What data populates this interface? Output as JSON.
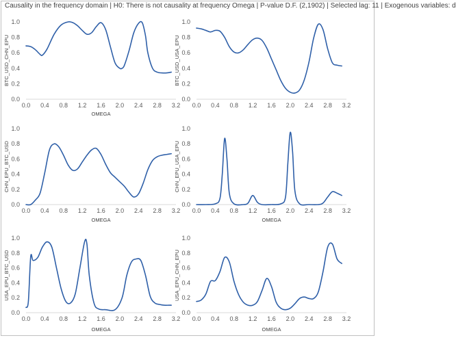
{
  "header": {
    "title": "Causality in the frequency domain | H0: There is not causality at frequency Omega | P-value D.F. (2,1902) | Selected lag: 11 | Exogenous variables: d"
  },
  "chart_data": [
    {
      "type": "line",
      "xlabel": "OMEGA",
      "ylabel": "BTC_USD_CHN_EPU",
      "xlim": [
        0.0,
        3.2
      ],
      "ylim": [
        0.0,
        1.0
      ],
      "xticks": [
        "0.0",
        "0.4",
        "0.8",
        "1.2",
        "1.6",
        "2.0",
        "2.4",
        "2.8",
        "3.2"
      ],
      "yticks": [
        "0.0",
        "0.2",
        "0.4",
        "0.6",
        "0.8",
        "1.0"
      ],
      "grid": false,
      "series": [
        {
          "color": "#2e5fa8",
          "x": [
            0.0,
            0.1,
            0.2,
            0.3,
            0.35,
            0.45,
            0.6,
            0.75,
            0.9,
            1.0,
            1.1,
            1.2,
            1.3,
            1.4,
            1.5,
            1.6,
            1.7,
            1.8,
            1.9,
            2.0,
            2.05,
            2.1,
            2.2,
            2.3,
            2.4,
            2.48,
            2.55,
            2.6,
            2.7,
            2.8,
            2.9,
            3.0,
            3.1
          ],
          "y": [
            0.69,
            0.68,
            0.64,
            0.58,
            0.57,
            0.65,
            0.84,
            0.96,
            1.0,
            0.99,
            0.95,
            0.89,
            0.84,
            0.86,
            0.94,
            0.99,
            0.9,
            0.68,
            0.47,
            0.4,
            0.4,
            0.44,
            0.63,
            0.86,
            0.98,
            0.99,
            0.82,
            0.6,
            0.4,
            0.35,
            0.34,
            0.34,
            0.35
          ]
        }
      ]
    },
    {
      "type": "line",
      "xlabel": "",
      "ylabel": "BTC_USD_USA_EPU",
      "xlim": [
        0.0,
        3.2
      ],
      "ylim": [
        0.0,
        1.0
      ],
      "xticks": [
        "0.0",
        "0.4",
        "0.8",
        "1.2",
        "1.6",
        "2.0",
        "2.4",
        "2.8",
        "3.2"
      ],
      "yticks": [
        "0.0",
        "0.2",
        "0.4",
        "0.6",
        "0.8",
        "1.0"
      ],
      "grid": false,
      "series": [
        {
          "color": "#2e5fa8",
          "x": [
            0.0,
            0.1,
            0.2,
            0.3,
            0.4,
            0.5,
            0.6,
            0.7,
            0.8,
            0.9,
            1.0,
            1.1,
            1.2,
            1.3,
            1.4,
            1.5,
            1.6,
            1.7,
            1.8,
            1.9,
            2.0,
            2.1,
            2.2,
            2.3,
            2.4,
            2.5,
            2.6,
            2.7,
            2.8,
            2.9,
            3.0,
            3.1
          ],
          "y": [
            0.92,
            0.91,
            0.89,
            0.87,
            0.89,
            0.88,
            0.8,
            0.68,
            0.61,
            0.6,
            0.64,
            0.71,
            0.77,
            0.79,
            0.76,
            0.66,
            0.52,
            0.38,
            0.24,
            0.14,
            0.09,
            0.08,
            0.12,
            0.25,
            0.48,
            0.79,
            0.97,
            0.9,
            0.65,
            0.47,
            0.44,
            0.43
          ]
        }
      ]
    },
    {
      "type": "line",
      "xlabel": "OMEGA",
      "ylabel": "CHN_EPU_BTC_USD",
      "xlim": [
        0.0,
        3.2
      ],
      "ylim": [
        0.0,
        1.0
      ],
      "xticks": [
        "0.0",
        "0.4",
        "0.8",
        "1.2",
        "1.6",
        "2.0",
        "2.4",
        "2.8",
        "3.2"
      ],
      "yticks": [
        "0.0",
        "0.2",
        "0.4",
        "0.6",
        "0.8",
        "1.0"
      ],
      "grid": false,
      "series": [
        {
          "color": "#2e5fa8",
          "x": [
            0.0,
            0.1,
            0.2,
            0.3,
            0.4,
            0.5,
            0.6,
            0.7,
            0.8,
            0.9,
            1.0,
            1.1,
            1.2,
            1.3,
            1.4,
            1.5,
            1.6,
            1.7,
            1.8,
            1.9,
            2.0,
            2.1,
            2.2,
            2.3,
            2.4,
            2.5,
            2.6,
            2.7,
            2.8,
            2.9,
            3.0,
            3.1
          ],
          "y": [
            0.0,
            0.0,
            0.06,
            0.15,
            0.42,
            0.72,
            0.8,
            0.76,
            0.65,
            0.52,
            0.45,
            0.47,
            0.56,
            0.65,
            0.72,
            0.74,
            0.66,
            0.53,
            0.42,
            0.36,
            0.3,
            0.24,
            0.16,
            0.1,
            0.14,
            0.28,
            0.46,
            0.58,
            0.63,
            0.65,
            0.66,
            0.67
          ]
        }
      ]
    },
    {
      "type": "line",
      "xlabel": "OMEGA",
      "ylabel": "CHN_EPU_USA_EPU",
      "xlim": [
        0.0,
        3.2
      ],
      "ylim": [
        0.0,
        1.0
      ],
      "xticks": [
        "0.0",
        "0.4",
        "0.8",
        "1.2",
        "1.6",
        "2.0",
        "2.4",
        "2.8",
        "3.2"
      ],
      "yticks": [
        "0.0",
        "0.2",
        "0.4",
        "0.6",
        "0.8",
        "1.0"
      ],
      "grid": false,
      "series": [
        {
          "color": "#2e5fa8",
          "x": [
            0.0,
            0.2,
            0.4,
            0.5,
            0.55,
            0.6,
            0.65,
            0.7,
            0.8,
            1.0,
            1.1,
            1.2,
            1.3,
            1.4,
            1.6,
            1.8,
            1.9,
            1.95,
            2.0,
            2.05,
            2.1,
            2.2,
            2.4,
            2.6,
            2.7,
            2.8,
            2.9,
            3.0,
            3.1
          ],
          "y": [
            0.0,
            0.0,
            0.01,
            0.08,
            0.4,
            0.87,
            0.6,
            0.15,
            0.01,
            0.0,
            0.02,
            0.12,
            0.03,
            0.0,
            0.0,
            0.01,
            0.1,
            0.55,
            0.95,
            0.7,
            0.18,
            0.01,
            0.0,
            0.0,
            0.02,
            0.1,
            0.17,
            0.15,
            0.12
          ]
        }
      ]
    },
    {
      "type": "line",
      "xlabel": "OMEGA",
      "ylabel": "USA_EPU_BTC_USD",
      "xlim": [
        0.0,
        3.2
      ],
      "ylim": [
        0.0,
        1.0
      ],
      "xticks": [
        "0.0",
        "0.4",
        "0.8",
        "1.2",
        "1.6",
        "2.0",
        "2.4",
        "2.8",
        "3.2"
      ],
      "yticks": [
        "0.0",
        "0.2",
        "0.4",
        "0.6",
        "0.8",
        "1.0"
      ],
      "grid": false,
      "series": [
        {
          "color": "#2e5fa8",
          "x": [
            0.0,
            0.05,
            0.1,
            0.15,
            0.25,
            0.35,
            0.45,
            0.55,
            0.65,
            0.75,
            0.85,
            0.95,
            1.05,
            1.15,
            1.25,
            1.3,
            1.35,
            1.45,
            1.55,
            1.7,
            1.9,
            2.05,
            2.15,
            2.25,
            2.35,
            2.45,
            2.55,
            2.65,
            2.75,
            2.85,
            2.95,
            3.05,
            3.1
          ],
          "y": [
            0.07,
            0.15,
            0.75,
            0.7,
            0.74,
            0.88,
            0.95,
            0.88,
            0.6,
            0.32,
            0.15,
            0.13,
            0.25,
            0.6,
            0.95,
            0.92,
            0.5,
            0.13,
            0.05,
            0.04,
            0.04,
            0.2,
            0.5,
            0.68,
            0.72,
            0.7,
            0.5,
            0.22,
            0.13,
            0.11,
            0.1,
            0.1,
            0.1
          ]
        }
      ]
    },
    {
      "type": "line",
      "xlabel": "OMEGA",
      "ylabel": "USA_EPU_CHN_EPU",
      "xlim": [
        0.0,
        3.2
      ],
      "ylim": [
        0.0,
        1.0
      ],
      "xticks": [
        "0.0",
        "0.4",
        "0.8",
        "1.2",
        "1.6",
        "2.0",
        "2.4",
        "2.8",
        "3.2"
      ],
      "yticks": [
        "0.0",
        "0.2",
        "0.4",
        "0.6",
        "0.8",
        "1.0"
      ],
      "grid": false,
      "series": [
        {
          "color": "#2e5fa8",
          "x": [
            0.0,
            0.1,
            0.2,
            0.3,
            0.4,
            0.5,
            0.6,
            0.7,
            0.8,
            0.9,
            1.0,
            1.1,
            1.2,
            1.3,
            1.4,
            1.5,
            1.6,
            1.7,
            1.8,
            1.9,
            2.0,
            2.1,
            2.2,
            2.3,
            2.4,
            2.5,
            2.6,
            2.7,
            2.8,
            2.9,
            3.0,
            3.1
          ],
          "y": [
            0.15,
            0.17,
            0.25,
            0.42,
            0.43,
            0.55,
            0.74,
            0.68,
            0.42,
            0.24,
            0.14,
            0.1,
            0.1,
            0.15,
            0.3,
            0.46,
            0.35,
            0.14,
            0.06,
            0.04,
            0.06,
            0.12,
            0.19,
            0.21,
            0.19,
            0.19,
            0.28,
            0.55,
            0.88,
            0.92,
            0.72,
            0.66
          ]
        }
      ]
    }
  ]
}
